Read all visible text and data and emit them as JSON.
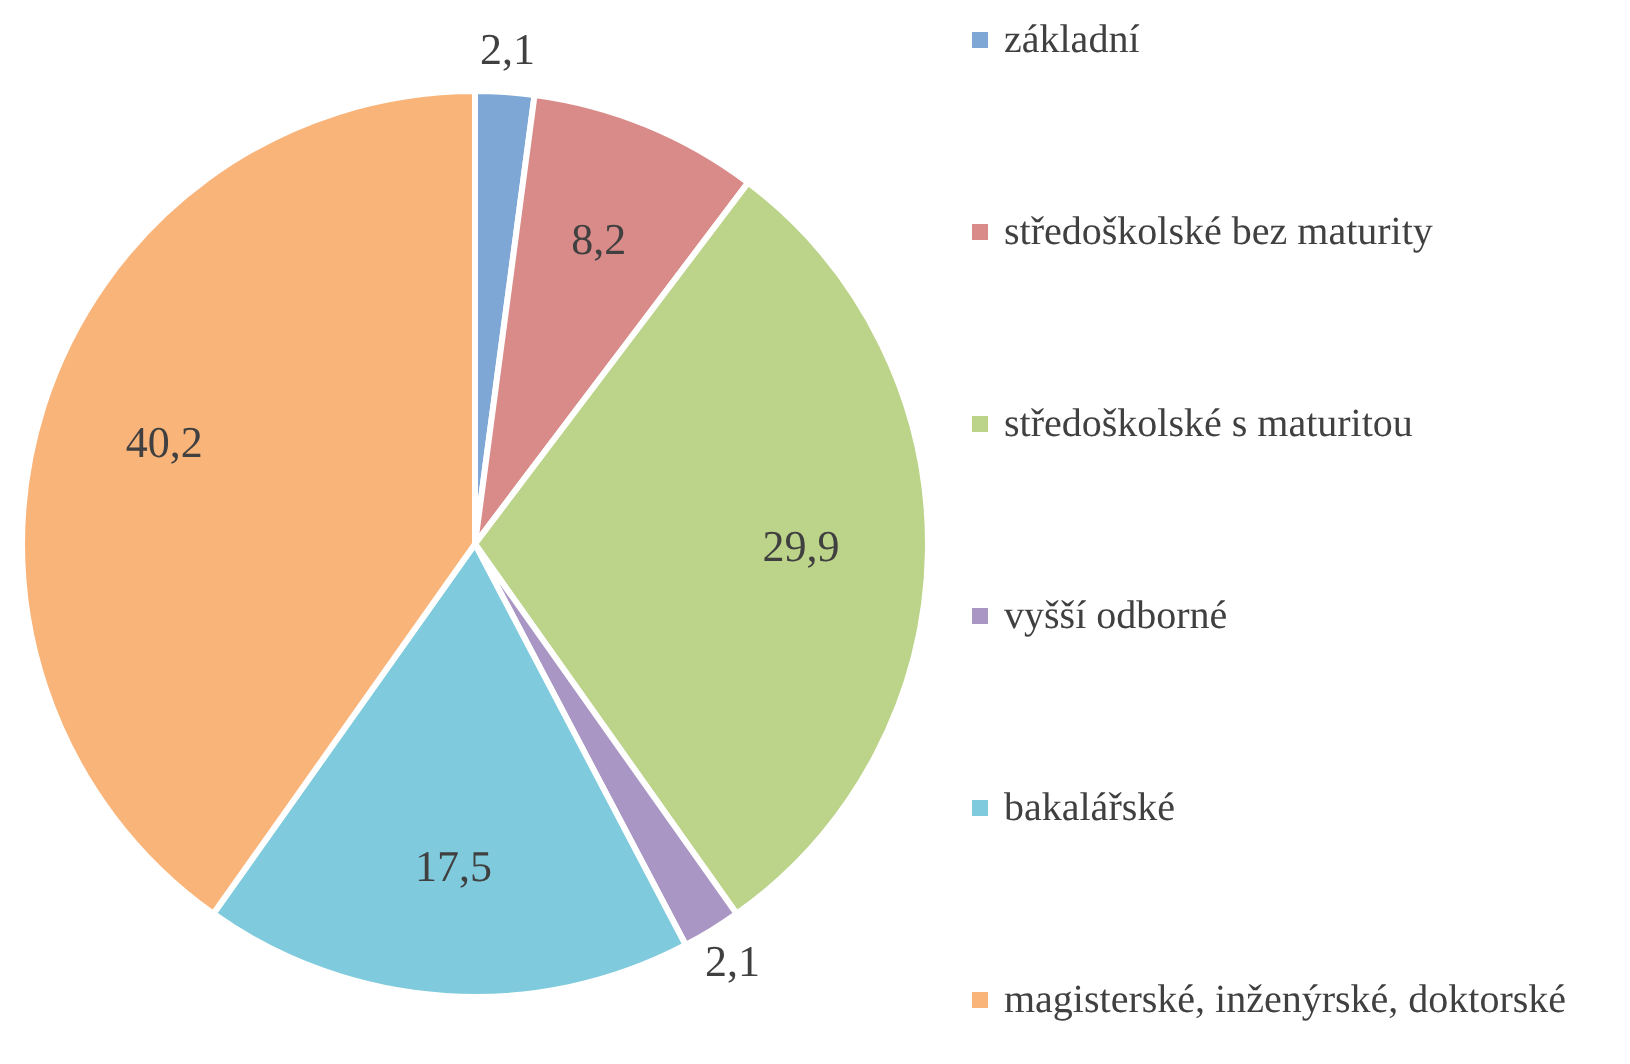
{
  "chart_data": {
    "type": "pie",
    "categories": [
      "základní",
      "středoškolské bez maturity",
      "středoškolské s maturitou",
      "vyšší odborné",
      "bakalářské",
      "magisterské, inženýrské, doktorské"
    ],
    "values": [
      2.1,
      8.2,
      29.9,
      2.1,
      17.5,
      40.2
    ],
    "colors": [
      "#7fa7d6",
      "#d98b89",
      "#bcd38a",
      "#a996c4",
      "#7fcbdd",
      "#f9b47a"
    ],
    "value_labels": [
      "2,1",
      "8,2",
      "29,9",
      "2,1",
      "17,5",
      "40,2"
    ],
    "legend": "right"
  }
}
